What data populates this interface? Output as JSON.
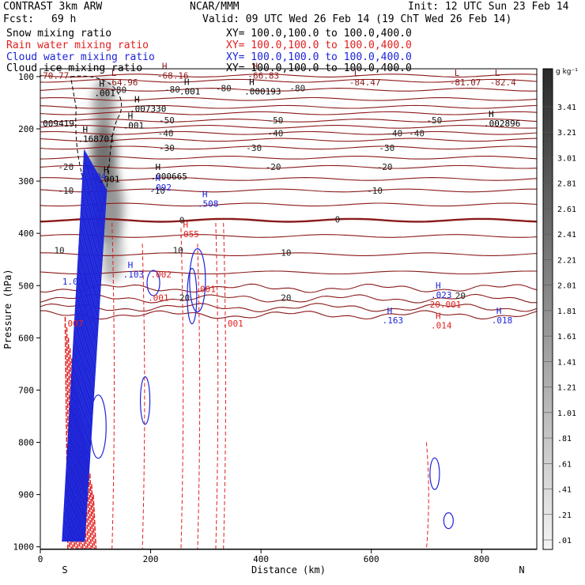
{
  "header": {
    "model": "CONTRAST  3km ARW",
    "center": "NCAR/MMM",
    "init": "Init: 12 UTC Sun 23 Feb 14",
    "fcst_label": "Fcst:",
    "fcst_value": "69 h",
    "valid": "Valid: 09 UTC Wed 26 Feb 14 (19 ChT Wed 26 Feb 14)"
  },
  "legend": [
    {
      "name": "Snow mixing ratio",
      "xy": "XY= 100.0,100.0 to 100.0,400.0",
      "color": "#000000"
    },
    {
      "name": "Rain water mixing ratio",
      "xy": "XY= 100.0,100.0 to 100.0,400.0",
      "color": "#e21e1e"
    },
    {
      "name": "Cloud water mixing ratio",
      "xy": "XY= 100.0,100.0 to 100.0,400.0",
      "color": "#1c24d8"
    },
    {
      "name": "Cloud ice mixing ratio",
      "xy": "XY= 100.0,100.0 to 100.0,400.0",
      "color": "#000000"
    }
  ],
  "chart_data": {
    "type": "cross-section contour",
    "title": "CONTRAST 3km ARW cross-section",
    "xlabel": "Distance (km)",
    "ylabel": "Pressure (hPa)",
    "xlim": [
      0,
      900
    ],
    "ylim": [
      1005,
      85
    ],
    "x_ticks": [
      0,
      200,
      400,
      600,
      800
    ],
    "y_ticks": [
      100,
      200,
      300,
      400,
      500,
      600,
      700,
      800,
      900,
      1000
    ],
    "x_ends": {
      "left": "S",
      "right": "N"
    },
    "temperature_contours": [
      {
        "label": "-80",
        "p": 125
      },
      {
        "label": "-50",
        "p": 184
      },
      {
        "label": "-40",
        "p": 208
      },
      {
        "label": "-30",
        "p": 236
      },
      {
        "label": "-20",
        "p": 273
      },
      {
        "label": "-10",
        "p": 318
      },
      {
        "label": "0",
        "p": 375
      },
      {
        "label": "10",
        "p": 440
      },
      {
        "label": "20",
        "p": 525
      }
    ],
    "contour_labels": [
      {
        "text": "-80",
        "x": 128,
        "p": 125
      },
      {
        "text": "-80",
        "x": 225,
        "p": 124
      },
      {
        "text": "-80",
        "x": 318,
        "p": 122
      },
      {
        "text": "-80",
        "x": 452,
        "p": 122
      },
      {
        "text": "-50",
        "x": 215,
        "p": 183
      },
      {
        "text": "-50",
        "x": 412,
        "p": 183
      },
      {
        "text": "-50",
        "x": 700,
        "p": 183
      },
      {
        "text": "-40",
        "x": 213,
        "p": 208
      },
      {
        "text": "-40",
        "x": 412,
        "p": 208
      },
      {
        "text": "-40",
        "x": 628,
        "p": 208
      },
      {
        "text": "-40",
        "x": 668,
        "p": 208
      },
      {
        "text": "-30",
        "x": 215,
        "p": 236
      },
      {
        "text": "-30",
        "x": 373,
        "p": 236
      },
      {
        "text": "-30",
        "x": 614,
        "p": 236
      },
      {
        "text": "-20",
        "x": 32,
        "p": 273
      },
      {
        "text": "-20",
        "x": 408,
        "p": 273
      },
      {
        "text": "-20",
        "x": 610,
        "p": 273
      },
      {
        "text": "-10",
        "x": 32,
        "p": 318
      },
      {
        "text": "-10",
        "x": 198,
        "p": 318
      },
      {
        "text": "-10",
        "x": 592,
        "p": 318
      },
      {
        "text": "0",
        "x": 252,
        "p": 375
      },
      {
        "text": "0",
        "x": 534,
        "p": 373
      },
      {
        "text": "10",
        "x": 25,
        "p": 432
      },
      {
        "text": "10",
        "x": 240,
        "p": 432
      },
      {
        "text": "10",
        "x": 436,
        "p": 437
      },
      {
        "text": "20",
        "x": 252,
        "p": 523
      },
      {
        "text": "20",
        "x": 436,
        "p": 523
      },
      {
        "text": "20",
        "x": 752,
        "p": 519
      }
    ],
    "extrema": [
      {
        "kind": "L",
        "value": "-64.96",
        "x": 120,
        "p": 105,
        "color": "#8b1a1a"
      },
      {
        "kind": "H",
        "value": "-68.16",
        "x": 212,
        "p": 92,
        "color": "#8b1a1a"
      },
      {
        "kind": "H",
        "value": "-66.83",
        "x": 376,
        "p": 92,
        "color": "#8b1a1a"
      },
      {
        "kind": "L",
        "value": "-84.47",
        "x": 560,
        "p": 105,
        "color": "#8b1a1a"
      },
      {
        "kind": "L",
        "value": "-81.07",
        "x": 742,
        "p": 105,
        "color": "#8b1a1a"
      },
      {
        "kind": "L",
        "value": "-82.4",
        "x": 815,
        "p": 105,
        "color": "#8b1a1a"
      },
      {
        "kind": "",
        "value": "-70.77",
        "x": -5,
        "p": 92,
        "color": "#8b1a1a"
      },
      {
        "kind": "H",
        "value": ".001",
        "x": 98,
        "p": 125,
        "color": "#000000"
      },
      {
        "kind": "H",
        "value": ".001",
        "x": 252,
        "p": 122,
        "color": "#000000"
      },
      {
        "kind": "H",
        "value": ".000193",
        "x": 370,
        "p": 122,
        "color": "#000000"
      },
      {
        "kind": "H",
        "value": ".007330",
        "x": 162,
        "p": 155,
        "color": "#000000"
      },
      {
        "kind": "H",
        "value": ".001",
        "x": 150,
        "p": 187,
        "color": "#000000"
      },
      {
        "kind": "",
        "value": ".009419",
        "x": -5,
        "p": 183,
        "color": "#000000"
      },
      {
        "kind": "H",
        "value": ".002896",
        "x": 804,
        "p": 183,
        "color": "#000000"
      },
      {
        "kind": "H",
        "value": ".168701",
        "x": 68,
        "p": 213,
        "color": "#000000"
      },
      {
        "kind": "H",
        "value": ".001",
        "x": 106,
        "p": 290,
        "color": "#000000"
      },
      {
        "kind": "H",
        "value": ".000665",
        "x": 200,
        "p": 285,
        "color": "#000000"
      },
      {
        "kind": "H",
        "value": "2.504",
        "x": 72,
        "p": 285,
        "color": "#1c24d8"
      },
      {
        "kind": "H",
        "value": ".092",
        "x": 200,
        "p": 306,
        "color": "#1c24d8"
      },
      {
        "kind": "H",
        "value": ".508",
        "x": 285,
        "p": 337,
        "color": "#1c24d8"
      },
      {
        "kind": "H",
        "value": ".055",
        "x": 250,
        "p": 395,
        "color": "#e21e1e"
      },
      {
        "kind": "H",
        "value": ".103",
        "x": 150,
        "p": 472,
        "color": "#1c24d8"
      },
      {
        "kind": "",
        "value": ".002",
        "x": 200,
        "p": 472,
        "color": "#e21e1e"
      },
      {
        "kind": "",
        "value": ".001",
        "x": 280,
        "p": 500,
        "color": "#e21e1e"
      },
      {
        "kind": "",
        "value": ".001",
        "x": 195,
        "p": 517,
        "color": "#e21e1e"
      },
      {
        "kind": "H",
        "value": ".023",
        "x": 708,
        "p": 512,
        "color": "#1c24d8"
      },
      {
        "kind": "",
        "value": "20.001",
        "x": 706,
        "p": 530,
        "color": "#e21e1e"
      },
      {
        "kind": "H",
        "value": ".163",
        "x": 620,
        "p": 560,
        "color": "#1c24d8"
      },
      {
        "kind": "H",
        "value": ".018",
        "x": 818,
        "p": 560,
        "color": "#1c24d8"
      },
      {
        "kind": "H",
        "value": ".014",
        "x": 708,
        "p": 570,
        "color": "#e21e1e"
      },
      {
        "kind": "",
        "value": ".001",
        "x": 330,
        "p": 566,
        "color": "#e21e1e"
      },
      {
        "kind": "",
        "value": ".007",
        "x": 40,
        "p": 566,
        "color": "#e21e1e"
      },
      {
        "kind": "",
        "value": "1.021",
        "x": 40,
        "p": 486,
        "color": "#1c24d8"
      }
    ],
    "colorbar": {
      "unit": "g kg⁻¹",
      "labels": [
        "3.41",
        "3.21",
        "3.01",
        "2.81",
        "2.61",
        "2.41",
        "2.21",
        "2.01",
        "1.81",
        "1.61",
        "1.41",
        "1.21",
        "1.01",
        ".81",
        ".61",
        ".41",
        ".21",
        ".01"
      ]
    }
  }
}
